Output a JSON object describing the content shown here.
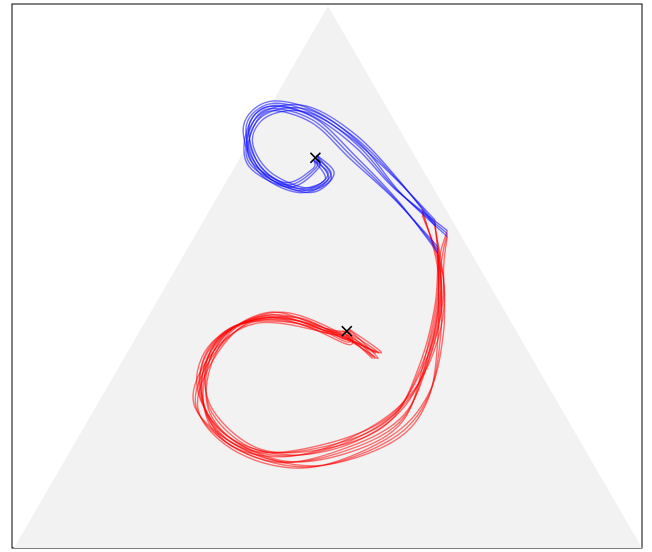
{
  "chart_data": {
    "type": "ternary-trajectory",
    "title": "",
    "axes_labels": [],
    "grid": false,
    "legend": "none",
    "colors": {
      "simplex": "#f2f2f2",
      "frame": "#000000",
      "series_a": "#ff0000",
      "series_b": "#0000ff",
      "marker": "#000000"
    },
    "series": [
      {
        "color_key": "series_a",
        "markers_icon": "x-marker-icon",
        "marker_points": [
          [
            0.4,
            0.27,
            0.33
          ]
        ],
        "trajectories": [
          [
            [
              0.58,
              0.02,
              0.4
            ],
            [
              0.52,
              0.06,
              0.42
            ],
            [
              0.4,
              0.12,
              0.48
            ],
            [
              0.28,
              0.2,
              0.52
            ],
            [
              0.2,
              0.3,
              0.5
            ],
            [
              0.15,
              0.45,
              0.4
            ],
            [
              0.18,
              0.55,
              0.27
            ],
            [
              0.26,
              0.58,
              0.16
            ],
            [
              0.36,
              0.5,
              0.14
            ],
            [
              0.42,
              0.4,
              0.18
            ],
            [
              0.4,
              0.3,
              0.3
            ],
            [
              0.36,
              0.24,
              0.4
            ],
            [
              0.4,
              0.27,
              0.33
            ]
          ],
          [
            [
              0.6,
              0.03,
              0.37
            ],
            [
              0.48,
              0.08,
              0.44
            ],
            [
              0.36,
              0.16,
              0.48
            ],
            [
              0.24,
              0.26,
              0.5
            ],
            [
              0.18,
              0.38,
              0.44
            ],
            [
              0.16,
              0.5,
              0.34
            ],
            [
              0.22,
              0.57,
              0.21
            ],
            [
              0.32,
              0.54,
              0.14
            ],
            [
              0.4,
              0.46,
              0.14
            ],
            [
              0.43,
              0.36,
              0.21
            ],
            [
              0.39,
              0.28,
              0.33
            ],
            [
              0.35,
              0.25,
              0.4
            ],
            [
              0.4,
              0.27,
              0.33
            ]
          ],
          [
            [
              0.55,
              0.05,
              0.4
            ],
            [
              0.45,
              0.1,
              0.45
            ],
            [
              0.34,
              0.18,
              0.48
            ],
            [
              0.24,
              0.28,
              0.48
            ],
            [
              0.19,
              0.4,
              0.41
            ],
            [
              0.18,
              0.52,
              0.3
            ],
            [
              0.25,
              0.56,
              0.19
            ],
            [
              0.34,
              0.52,
              0.14
            ],
            [
              0.41,
              0.44,
              0.15
            ],
            [
              0.42,
              0.34,
              0.24
            ],
            [
              0.38,
              0.28,
              0.34
            ],
            [
              0.4,
              0.27,
              0.33
            ]
          ],
          [
            [
              0.62,
              0.04,
              0.34
            ],
            [
              0.5,
              0.07,
              0.43
            ],
            [
              0.38,
              0.14,
              0.48
            ],
            [
              0.27,
              0.24,
              0.49
            ],
            [
              0.2,
              0.36,
              0.44
            ],
            [
              0.17,
              0.48,
              0.35
            ],
            [
              0.2,
              0.56,
              0.24
            ],
            [
              0.29,
              0.56,
              0.15
            ],
            [
              0.38,
              0.49,
              0.13
            ],
            [
              0.43,
              0.38,
              0.19
            ],
            [
              0.4,
              0.3,
              0.3
            ],
            [
              0.4,
              0.27,
              0.33
            ]
          ]
        ]
      },
      {
        "color_key": "series_b",
        "markers_icon": "x-marker-icon",
        "marker_points": [
          [
            0.72,
            0.16,
            0.12
          ]
        ],
        "trajectories": [
          [
            [
              0.58,
              0.02,
              0.4
            ],
            [
              0.66,
              0.06,
              0.28
            ],
            [
              0.74,
              0.08,
              0.18
            ],
            [
              0.8,
              0.12,
              0.08
            ],
            [
              0.82,
              0.18,
              0.0
            ],
            [
              0.78,
              0.24,
              -0.02
            ],
            [
              0.7,
              0.26,
              0.04
            ],
            [
              0.66,
              0.22,
              0.12
            ],
            [
              0.68,
              0.16,
              0.16
            ],
            [
              0.72,
              0.16,
              0.12
            ]
          ],
          [
            [
              0.6,
              0.03,
              0.37
            ],
            [
              0.68,
              0.05,
              0.27
            ],
            [
              0.76,
              0.08,
              0.16
            ],
            [
              0.81,
              0.13,
              0.06
            ],
            [
              0.8,
              0.2,
              0.0
            ],
            [
              0.75,
              0.25,
              0.0
            ],
            [
              0.69,
              0.25,
              0.06
            ],
            [
              0.66,
              0.2,
              0.14
            ],
            [
              0.69,
              0.15,
              0.16
            ],
            [
              0.72,
              0.16,
              0.12
            ]
          ],
          [
            [
              0.55,
              0.05,
              0.4
            ],
            [
              0.64,
              0.07,
              0.29
            ],
            [
              0.72,
              0.1,
              0.18
            ],
            [
              0.79,
              0.13,
              0.08
            ],
            [
              0.81,
              0.19,
              0.0
            ],
            [
              0.77,
              0.24,
              -0.01
            ],
            [
              0.71,
              0.27,
              0.02
            ],
            [
              0.67,
              0.23,
              0.1
            ],
            [
              0.7,
              0.17,
              0.13
            ],
            [
              0.72,
              0.16,
              0.12
            ]
          ]
        ]
      }
    ]
  }
}
